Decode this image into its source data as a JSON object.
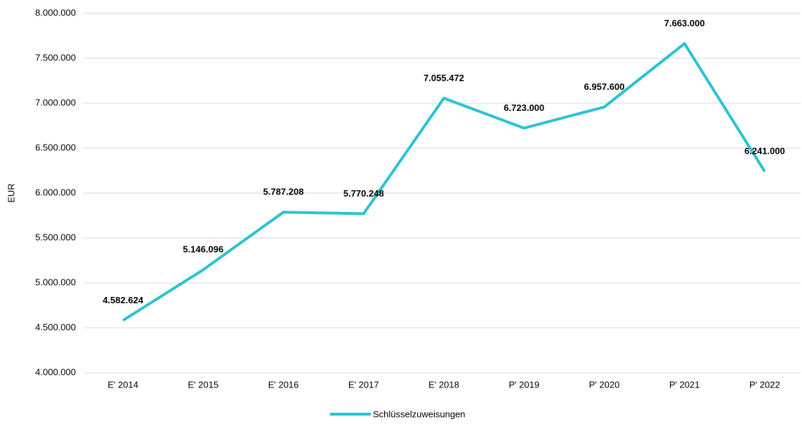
{
  "chart_data": {
    "type": "line",
    "ylabel": "EUR",
    "categories": [
      "E' 2014",
      "E' 2015",
      "E' 2016",
      "E' 2017",
      "E' 2018",
      "P' 2019",
      "P' 2020",
      "P' 2021",
      "P' 2022"
    ],
    "series": [
      {
        "name": "Schlüsselzuweisungen",
        "color": "#2bc3d2",
        "values": [
          4582624,
          5146096,
          5787208,
          5770248,
          7055472,
          6723000,
          6957600,
          7663000,
          6241000
        ],
        "value_labels": [
          "4.582.624",
          "5.146.096",
          "5.787.208",
          "5.770.248",
          "7.055.472",
          "6.723.000",
          "6.957.600",
          "7.663.000",
          "6.241.000"
        ]
      }
    ],
    "ylim": [
      4000000,
      8000000
    ],
    "yticks": [
      {
        "value": 4000000,
        "label": "4.000.000"
      },
      {
        "value": 4500000,
        "label": "4.500.000"
      },
      {
        "value": 5000000,
        "label": "5.000.000"
      },
      {
        "value": 5500000,
        "label": "5.500.000"
      },
      {
        "value": 6000000,
        "label": "6.000.000"
      },
      {
        "value": 6500000,
        "label": "6.500.000"
      },
      {
        "value": 7000000,
        "label": "7.000.000"
      },
      {
        "value": 7500000,
        "label": "7.500.000"
      },
      {
        "value": 8000000,
        "label": "8.000.000"
      }
    ],
    "grid": true,
    "legend": "bottom"
  }
}
